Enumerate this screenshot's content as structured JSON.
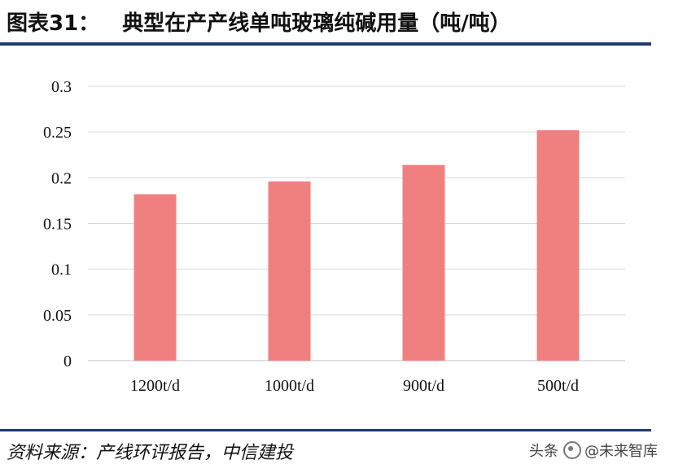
{
  "header": {
    "figure_label": "图表31：",
    "title": "典型在产产线单吨玻璃纯碱用量（吨/吨）"
  },
  "chart_data": {
    "type": "bar",
    "categories": [
      "1200t/d",
      "1000t/d",
      "900t/d",
      "500t/d"
    ],
    "values": [
      0.182,
      0.196,
      0.214,
      0.252
    ],
    "title": "典型在产产线单吨玻璃纯碱用量（吨/吨）",
    "xlabel": "",
    "ylabel": "",
    "ylim": [
      0,
      0.3
    ],
    "yticks": [
      "0",
      "0.05",
      "0.1",
      "0.15",
      "0.2",
      "0.25",
      "0.3"
    ],
    "bar_color": "#f08080",
    "grid": true,
    "legend": "none"
  },
  "footer": {
    "source": "资料来源：产线环评报告，中信建投",
    "watermark_prefix": "头条",
    "watermark_name": "@未来智库"
  }
}
